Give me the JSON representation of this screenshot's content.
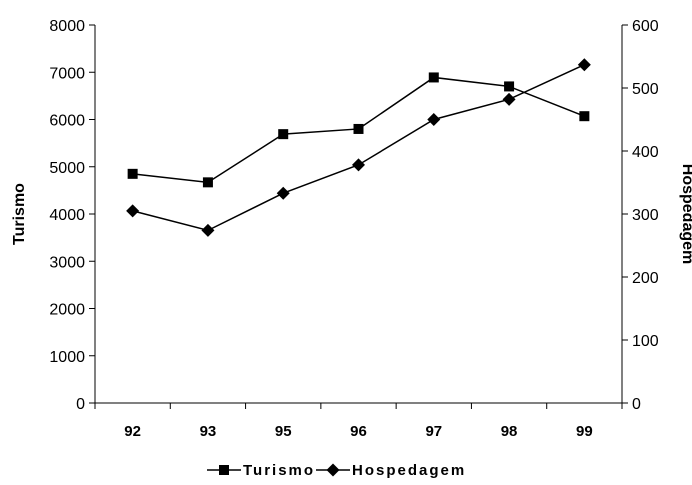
{
  "chart_data": {
    "type": "line",
    "categories": [
      "92",
      "93",
      "95",
      "96",
      "97",
      "98",
      "99"
    ],
    "series": [
      {
        "name": "Turismo",
        "axis": "left",
        "marker": "square",
        "values": [
          4850,
          4670,
          5690,
          5800,
          6890,
          6700,
          6070
        ]
      },
      {
        "name": "Hospedagem",
        "axis": "right",
        "marker": "diamond",
        "values": [
          305,
          274,
          333,
          378,
          450,
          482,
          537
        ]
      }
    ],
    "y_left": {
      "label": "Turismo",
      "range": [
        0,
        8000
      ],
      "ticks": [
        0,
        1000,
        2000,
        3000,
        4000,
        5000,
        6000,
        7000,
        8000
      ]
    },
    "y_right": {
      "label": "Hospedagem",
      "range": [
        0,
        600
      ],
      "ticks": [
        0,
        100,
        200,
        300,
        400,
        500,
        600
      ]
    },
    "grid": false,
    "legend": {
      "position": "bottom"
    },
    "colors": {
      "line": "#000000",
      "background": "#ffffff"
    }
  }
}
